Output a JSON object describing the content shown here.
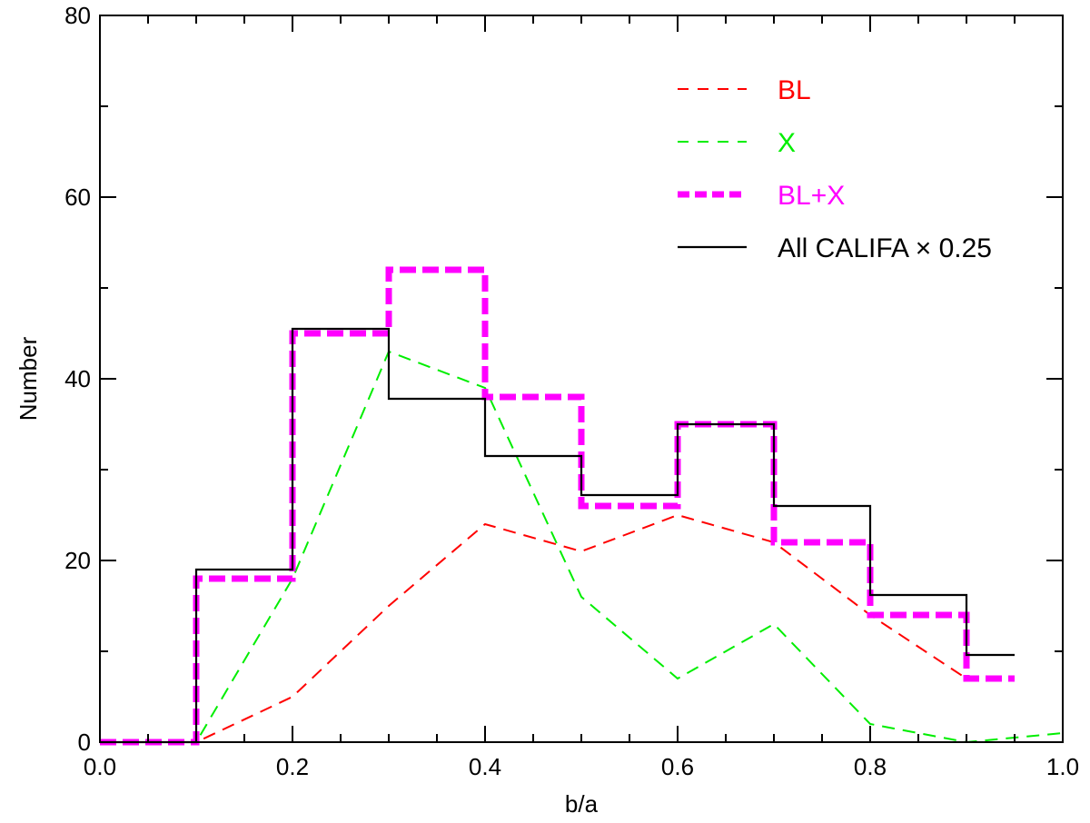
{
  "chart_data": {
    "type": "line",
    "title": "",
    "xlabel": "b/a",
    "ylabel": "Number",
    "xlim": [
      0.0,
      1.0
    ],
    "ylim": [
      0,
      80
    ],
    "xticks": [
      0.0,
      0.2,
      0.4,
      0.6,
      0.8,
      1.0
    ],
    "xtick_labels": [
      "0.0",
      "0.2",
      "0.4",
      "0.6",
      "0.8",
      "1.0"
    ],
    "yticks": [
      0,
      20,
      40,
      60,
      80
    ],
    "ytick_labels": [
      "0",
      "20",
      "40",
      "60",
      "80"
    ],
    "grid": false,
    "legend_position": "top-right",
    "series": [
      {
        "name": "BL",
        "style": "dashed-line",
        "color": "#ff0000",
        "x": [
          0.0,
          0.1,
          0.2,
          0.3,
          0.4,
          0.5,
          0.6,
          0.7,
          0.8,
          0.9
        ],
        "y": [
          0,
          0,
          5,
          15,
          24,
          21,
          25,
          22,
          14,
          7
        ]
      },
      {
        "name": "X",
        "style": "dashed-line",
        "color": "#00ee00",
        "x": [
          0.0,
          0.1,
          0.2,
          0.3,
          0.4,
          0.5,
          0.6,
          0.7,
          0.8,
          0.9,
          1.0
        ],
        "y": [
          0,
          0,
          18,
          43,
          39,
          16,
          7,
          13,
          2,
          0,
          1
        ]
      },
      {
        "name": "BL+X",
        "style": "thick-dashed-step",
        "color": "#ff00ff",
        "bin_edges": [
          0.0,
          0.1,
          0.2,
          0.3,
          0.4,
          0.5,
          0.6,
          0.7,
          0.8,
          0.9,
          0.95
        ],
        "values": [
          0,
          18,
          45,
          52,
          38,
          26,
          35,
          22,
          14,
          7
        ]
      },
      {
        "name": "All CALIFA × 0.25",
        "style": "solid-step",
        "color": "#000000",
        "bin_edges": [
          0.0,
          0.1,
          0.2,
          0.3,
          0.4,
          0.5,
          0.6,
          0.7,
          0.8,
          0.9,
          0.95
        ],
        "values": [
          0,
          19,
          45.5,
          37.8,
          31.5,
          27.2,
          35,
          26,
          16.2,
          9.6
        ]
      }
    ]
  }
}
